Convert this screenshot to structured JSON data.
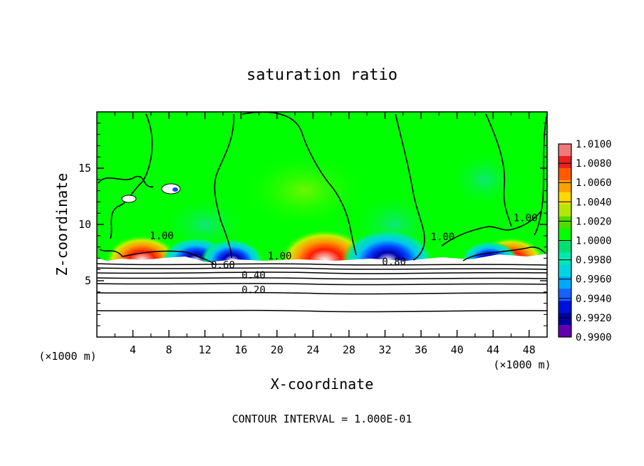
{
  "chart_data": {
    "type": "heatmap",
    "title": "saturation ratio",
    "xlabel": "X-coordinate",
    "ylabel": "Z-coordinate",
    "x_unit_left": "(×1000 m)",
    "x_unit_right": "(×1000 m)",
    "footer": "CONTOUR INTERVAL = 1.000E-01",
    "xlim": [
      0,
      50
    ],
    "ylim": [
      0,
      20
    ],
    "x_ticks": [
      "4",
      "8",
      "12",
      "16",
      "20",
      "24",
      "28",
      "32",
      "36",
      "40",
      "44",
      "48"
    ],
    "y_ticks": [
      "5",
      "10",
      "15"
    ],
    "colorbar": {
      "min": 0.99,
      "max": 1.01,
      "labels": [
        "1.0100",
        "1.0080",
        "1.0060",
        "1.0040",
        "1.0020",
        "1.0000",
        "0.9980",
        "0.9960",
        "0.9940",
        "0.9920",
        "0.9900"
      ],
      "colors": [
        "#f07a7a",
        "#e82020",
        "#ff5a00",
        "#ffa000",
        "#ffd800",
        "#b4e800",
        "#50dc00",
        "#00ff00",
        "#00e070",
        "#00e8b0",
        "#00d4e0",
        "#00a8ff",
        "#1a60ff",
        "#0010dc",
        "#0000a0",
        "#6000b0"
      ]
    },
    "contour_labels": [
      {
        "text": "1.00",
        "x": 7.2,
        "z": 8.7
      },
      {
        "text": "0.60",
        "x": 14,
        "z": 6.1
      },
      {
        "text": "0.40",
        "x": 17.4,
        "z": 5.2
      },
      {
        "text": "0.20",
        "x": 17.4,
        "z": 3.9
      },
      {
        "text": "1.00",
        "x": 20.3,
        "z": 6.9
      },
      {
        "text": "0.80",
        "x": 33,
        "z": 6.4
      },
      {
        "text": "1.00",
        "x": 38.4,
        "z": 8.6
      },
      {
        "text": "1.00",
        "x": 47.6,
        "z": 10.3
      }
    ],
    "surface_saturation_anomalies": [
      {
        "x": 5,
        "sign": "high",
        "strength": 0.7
      },
      {
        "x": 11,
        "sign": "low",
        "strength": 0.6
      },
      {
        "x": 15,
        "sign": "low",
        "strength": 0.5
      },
      {
        "x": 25.3,
        "sign": "high",
        "strength": 1.0
      },
      {
        "x": 32.3,
        "sign": "low",
        "strength": 1.0
      },
      {
        "x": 46,
        "sign": "high",
        "strength": 0.6
      },
      {
        "x": 43.6,
        "sign": "low",
        "strength": 0.4
      }
    ]
  }
}
